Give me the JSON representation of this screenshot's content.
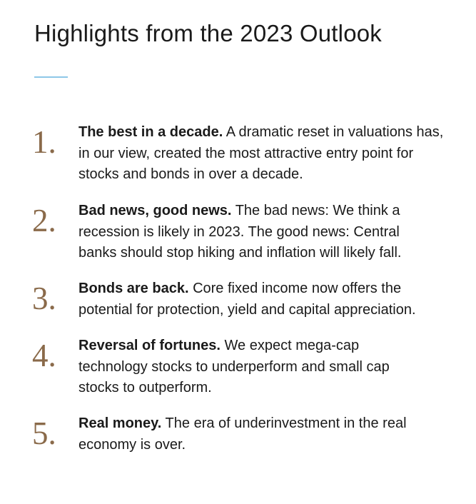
{
  "title": "Highlights from the 2023 Outlook",
  "accent_color": "#8ec7e8",
  "number_color": "#8a6a4a",
  "items": [
    {
      "number": "1.",
      "heading": "The best in a decade.",
      "body": "A dramatic reset in valuations has, in our view, created the most attractive entry point for stocks and bonds in over a decade."
    },
    {
      "number": "2.",
      "heading": "Bad news, good news.",
      "body": "The bad news: We think a recession is likely in 2023. The good news: Central banks should stop hiking and inflation will likely fall."
    },
    {
      "number": "3.",
      "heading": "Bonds are back.",
      "body": "Core fixed income now offers the potential for protection, yield and capital appreciation."
    },
    {
      "number": "4.",
      "heading": "Reversal of fortunes.",
      "body": "We expect mega-cap technology stocks to underperform and small cap stocks to outperform."
    },
    {
      "number": "5.",
      "heading": "Real money.",
      "body": "The era of underinvestment in the real economy is over."
    }
  ]
}
